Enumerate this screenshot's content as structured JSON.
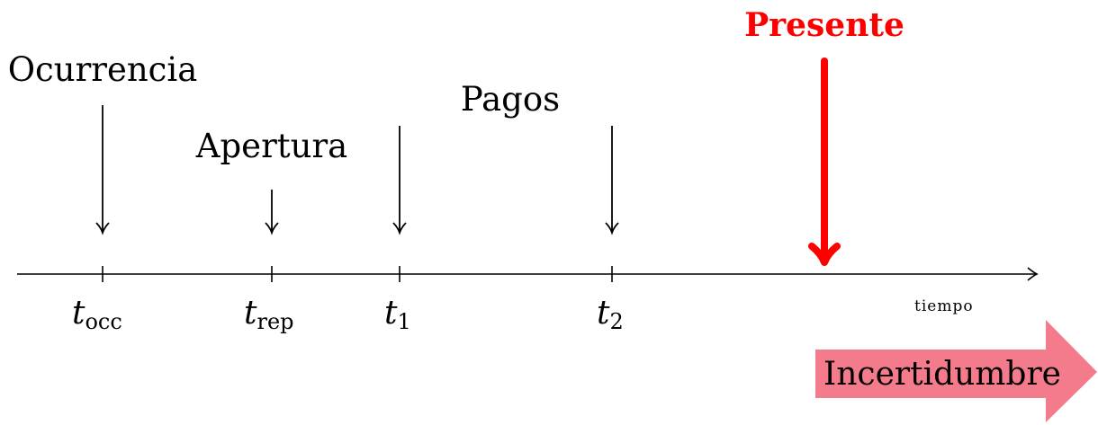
{
  "events": {
    "occurrence": "Ocurrencia",
    "reporting": "Apertura",
    "payments": "Pagos"
  },
  "present": {
    "label": "Presente",
    "color": "#ff0000"
  },
  "axis": {
    "label": "tiempo"
  },
  "ticks": [
    {
      "main": "t",
      "sub": "occ"
    },
    {
      "main": "t",
      "sub": "rep"
    },
    {
      "main": "t",
      "sub": "1"
    },
    {
      "main": "t",
      "sub": "2"
    }
  ],
  "uncertainty": {
    "label": "Incertidumbre",
    "color": "#f47b8c"
  }
}
